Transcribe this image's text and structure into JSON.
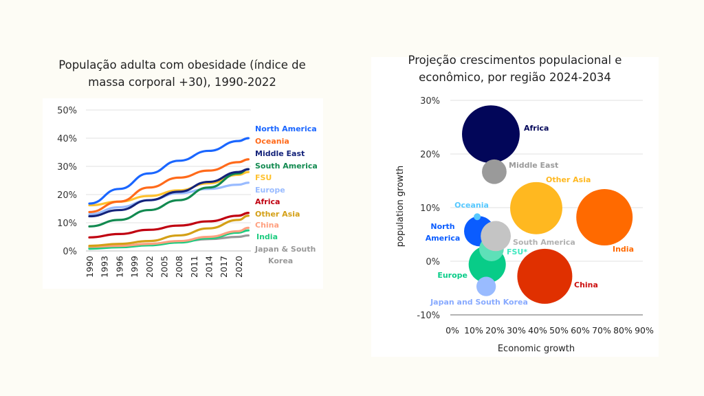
{
  "chart_data": [
    {
      "type": "line",
      "title": "População adulta com obesidade (índice de massa corporal  +30), 1990-2022",
      "title_lines": [
        "População adulta com obesidade (índice de",
        "massa corporal  +30), 1990-2022"
      ],
      "xlabel": "",
      "ylabel": "",
      "x": [
        1990,
        1996,
        2002,
        2008,
        2014,
        2020,
        2022
      ],
      "x_ticks": [
        "1990",
        "1993",
        "1996",
        "1999",
        "2002",
        "2005",
        "2008",
        "2011",
        "2014",
        "2017",
        "2020"
      ],
      "y_ticks": [
        "0%",
        "10%",
        "20%",
        "30%",
        "40%",
        "50%"
      ],
      "ylim": [
        0,
        50
      ],
      "grid": true,
      "legend": "right (inline labels)",
      "series": [
        {
          "name": "North America",
          "color": "#1a66ff",
          "values": [
            16.8,
            22,
            27.5,
            32,
            35.5,
            39,
            40
          ]
        },
        {
          "name": "Oceania",
          "color": "#ff6a1a",
          "values": [
            13.8,
            17.5,
            22.5,
            26,
            28.5,
            31.5,
            32.5
          ]
        },
        {
          "name": "Middle East",
          "color": "#14237a",
          "values": [
            12.3,
            14.5,
            18,
            21,
            24.5,
            28,
            29
          ]
        },
        {
          "name": "South America",
          "color": "#128a50",
          "values": [
            8.7,
            11,
            14.5,
            18,
            22.5,
            27.5,
            29
          ]
        },
        {
          "name": "FSU",
          "color": "#ffc12e",
          "values": [
            16.2,
            17.5,
            19.5,
            21.5,
            24,
            27,
            28
          ]
        },
        {
          "name": "Europe",
          "color": "#99bbff",
          "values": [
            13,
            15.5,
            18,
            20.5,
            22,
            23.5,
            24.2
          ]
        },
        {
          "name": "Africa",
          "color": "#c00010",
          "values": [
            4.8,
            6,
            7.5,
            9,
            10.5,
            12.5,
            13.5
          ]
        },
        {
          "name": "Other Asia",
          "color": "#d4a017",
          "values": [
            1.8,
            2.5,
            3.5,
            5.5,
            8,
            11,
            12.5
          ]
        },
        {
          "name": "China",
          "color": "#ffa080",
          "values": [
            1.5,
            1.8,
            2.5,
            3.5,
            5,
            7,
            8.2
          ]
        },
        {
          "name": "India",
          "color": "#1ecc80",
          "values": [
            0.8,
            1.3,
            2,
            3,
            4.5,
            6.5,
            7.3
          ]
        },
        {
          "name": "Japan & South Korea",
          "label_lines": [
            "Japan & South",
            "Korea"
          ],
          "color": "#999999",
          "values": [
            1.2,
            1.8,
            2.5,
            3.3,
            4.2,
            5,
            5.5
          ]
        }
      ]
    },
    {
      "type": "scatter",
      "subtype": "bubble",
      "title": "Projeção crescimentos populacional e econômico, por região 2024-2034",
      "title_lines": [
        "Projeção crescimentos populacional e",
        "econômico, por região 2024-2034"
      ],
      "xlabel": "Economic growth",
      "ylabel": "population growth",
      "xlim": [
        0,
        90
      ],
      "ylim": [
        -10,
        30
      ],
      "x_ticks": [
        "0%",
        "10%",
        "20%",
        "30%",
        "40%",
        "50%",
        "60%",
        "70%",
        "80%",
        "90%"
      ],
      "y_ticks": [
        "-10%",
        "0%",
        "10%",
        "20%",
        "30%"
      ],
      "grid": true,
      "points": [
        {
          "name": "Africa",
          "x": 18.7,
          "y": 23.7,
          "size": 17.6,
          "color": "#020659",
          "label_color": "#020659"
        },
        {
          "name": "Middle East",
          "x": 20.3,
          "y": 16.7,
          "size": 3.2,
          "color": "#9a9a9a",
          "label_color": "#9a9a9a"
        },
        {
          "name": "Other Asia",
          "x": 40,
          "y": 9.9,
          "size": 14.4,
          "color": "#ffb820",
          "label_color": "#ffb820"
        },
        {
          "name": "India",
          "x": 72,
          "y": 8.2,
          "size": 16.8,
          "color": "#ff6a00",
          "label_color": "#ff6a00"
        },
        {
          "name": "North America",
          "label_lines": [
            "North",
            "America"
          ],
          "x": 13.2,
          "y": 5.6,
          "size": 4.8,
          "color": "#0a5cff",
          "label_color": "#0a5cff"
        },
        {
          "name": "Oceania",
          "x": 12.3,
          "y": 8.3,
          "size": 0.25,
          "color": "#55c8ff",
          "label_color": "#55c8ff"
        },
        {
          "name": "Europe",
          "x": 17,
          "y": -0.6,
          "size": 7.3,
          "color": "#08cc88",
          "label_color": "#08cc88"
        },
        {
          "name": "FSU*",
          "x": 19,
          "y": 2.3,
          "size": 3.2,
          "color": "#5ee0b8",
          "label_color": "#40e8c0"
        },
        {
          "name": "South America",
          "x": 21,
          "y": 4.7,
          "size": 4.8,
          "color": "#c4c4c4",
          "label_color": "#b0b0b0"
        },
        {
          "name": "Japan and South Korea",
          "x": 16.5,
          "y": -4.7,
          "size": 2.0,
          "color": "#99bbff",
          "label_color": "#88aaff"
        },
        {
          "name": "China",
          "x": 44,
          "y": -2.8,
          "size": 16.0,
          "color": "#e03000",
          "label_color": "#cc1010"
        }
      ]
    }
  ]
}
